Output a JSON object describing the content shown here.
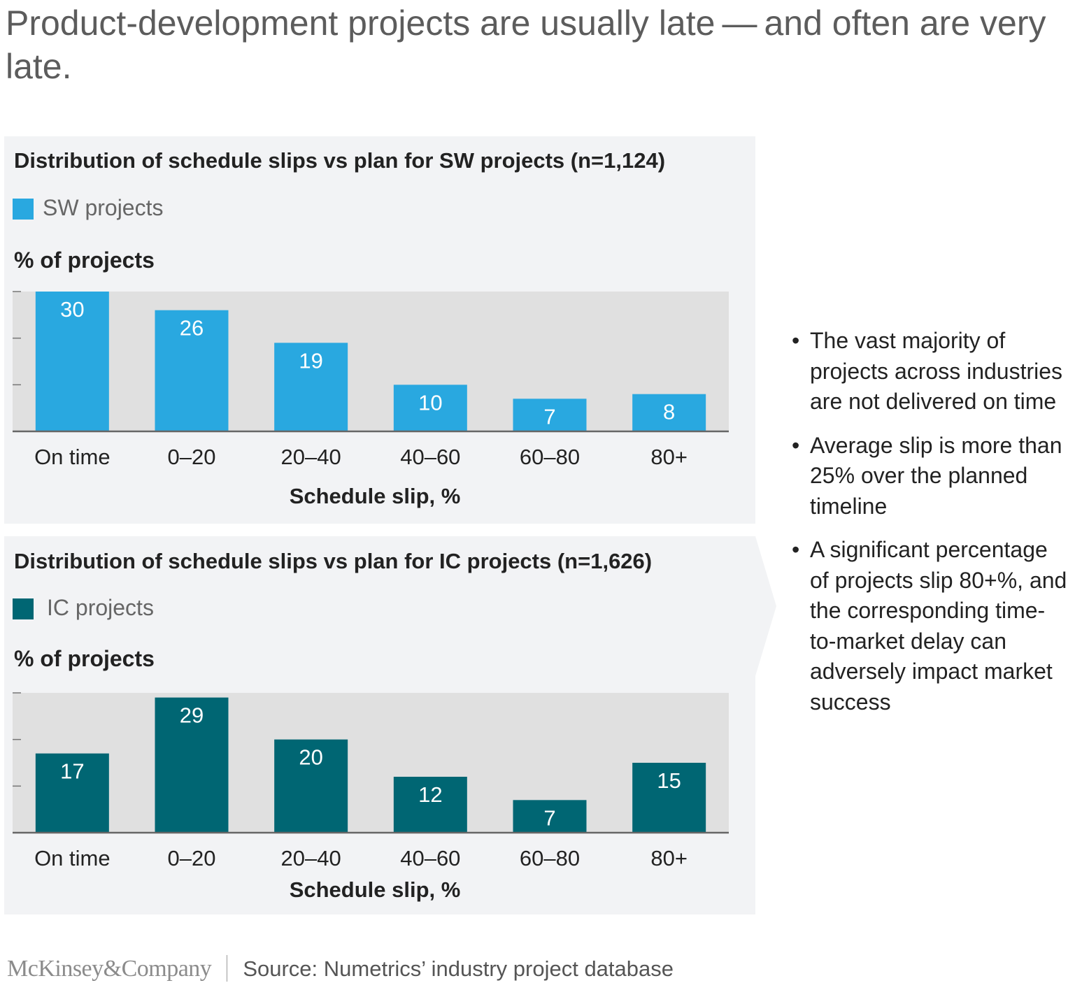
{
  "headline": "Product-development projects are usually late — and often are very late.",
  "bullets": [
    "The vast majority of projects across industries are not delivered on time",
    "Average slip is more than 25% over the planned timeline",
    "A significant percentage of projects slip 80+%, and the corresponding time-to-market delay can adversely impact market success"
  ],
  "bullet_symbol": "•",
  "footer": {
    "logo": "McKinsey&Company",
    "source": "Source: Numetrics’ industry project database"
  },
  "colors": {
    "sw": "#29a8e0",
    "ic": "#006673",
    "plot_bg": "#e0e0e0",
    "panel_bg": "#f2f3f5"
  },
  "chart_data": [
    {
      "type": "bar",
      "title": "Distribution of schedule slips vs plan for SW projects (n=1,124)",
      "legend": "SW projects",
      "ylabel": "% of projects",
      "xlabel": "Schedule slip, %",
      "categories": [
        "On time",
        "0–20",
        "20–40",
        "40–60",
        "60–80",
        "80+"
      ],
      "series": [
        {
          "name": "SW projects",
          "values": [
            30,
            26,
            19,
            10,
            7,
            8
          ]
        }
      ],
      "ylim": [
        0,
        30
      ],
      "grid": false
    },
    {
      "type": "bar",
      "title": "Distribution of schedule slips vs plan for IC projects (n=1,626)",
      "legend": "IC projects",
      "ylabel": "% of projects",
      "xlabel": "Schedule slip, %",
      "categories": [
        "On time",
        "0–20",
        "20–40",
        "40–60",
        "60–80",
        "80+"
      ],
      "series": [
        {
          "name": "IC projects",
          "values": [
            17,
            29,
            20,
            12,
            7,
            15
          ]
        }
      ],
      "ylim": [
        0,
        30
      ],
      "grid": false
    }
  ]
}
